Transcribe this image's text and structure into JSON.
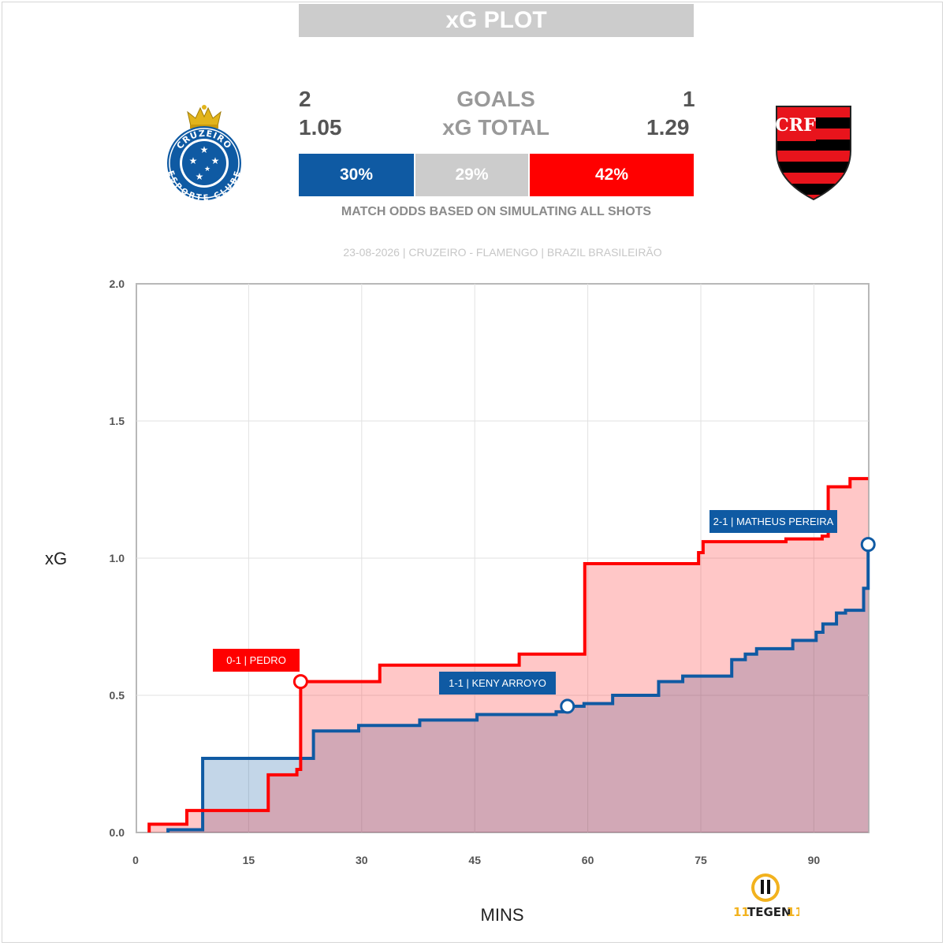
{
  "header": {
    "title": "xG PLOT"
  },
  "teams": {
    "home": {
      "name": "CRUZEIRO",
      "goals": "2",
      "xg": "1.05",
      "color": "#0f5aa3",
      "crest_text_top": "CRUZEIRO",
      "crest_text_bottom": "ESPORTE CLUBE"
    },
    "away": {
      "name": "FLAMENGO",
      "goals": "1",
      "xg": "1.29",
      "color": "#ff0000",
      "crest_monogram": "CRF"
    }
  },
  "labels": {
    "goals": "GOALS",
    "xg_total": "xG TOTAL"
  },
  "odds": {
    "home": "30%",
    "draw": "29%",
    "away": "42%",
    "home_pct": 30,
    "draw_pct": 29,
    "away_pct": 42,
    "caption": "MATCH ODDS BASED ON SIMULATING ALL SHOTS"
  },
  "match_info": "23-08-2026 | CRUZEIRO - FLAMENGO | BRAZIL BRASILEIRÃO",
  "brand": {
    "text": "TEGEN"
  },
  "chart_data": {
    "type": "line",
    "title": "",
    "xlabel": "MINS",
    "ylabel": "xG",
    "xlim": [
      0,
      97
    ],
    "ylim": [
      0,
      2.0
    ],
    "xticks": [
      0,
      15,
      30,
      45,
      60,
      75,
      90
    ],
    "yticks": [
      "0.0",
      "0.5",
      "1.0",
      "1.5",
      "2.0"
    ],
    "grid": true,
    "series": [
      {
        "name": "CRUZEIRO",
        "color": "#0f5aa3",
        "step": true,
        "points": [
          [
            4.3,
            0
          ],
          [
            4.3,
            0.01
          ],
          [
            8.9,
            0.01
          ],
          [
            8.9,
            0.27
          ],
          [
            23.6,
            0.27
          ],
          [
            23.6,
            0.37
          ],
          [
            29.6,
            0.37
          ],
          [
            29.6,
            0.39
          ],
          [
            37.7,
            0.39
          ],
          [
            37.7,
            0.41
          ],
          [
            45.3,
            0.41
          ],
          [
            45.3,
            0.43
          ],
          [
            55.8,
            0.43
          ],
          [
            55.8,
            0.44
          ],
          [
            57.3,
            0.44
          ],
          [
            57.3,
            0.46
          ],
          [
            59.5,
            0.46
          ],
          [
            59.5,
            0.47
          ],
          [
            63.3,
            0.47
          ],
          [
            63.3,
            0.5
          ],
          [
            69.4,
            0.5
          ],
          [
            69.4,
            0.55
          ],
          [
            72.6,
            0.55
          ],
          [
            72.6,
            0.57
          ],
          [
            79.1,
            0.57
          ],
          [
            79.1,
            0.63
          ],
          [
            80.9,
            0.63
          ],
          [
            80.9,
            0.65
          ],
          [
            82.4,
            0.65
          ],
          [
            82.4,
            0.67
          ],
          [
            87.2,
            0.67
          ],
          [
            87.2,
            0.7
          ],
          [
            90.3,
            0.7
          ],
          [
            90.3,
            0.73
          ],
          [
            91.2,
            0.73
          ],
          [
            91.2,
            0.76
          ],
          [
            93.0,
            0.76
          ],
          [
            93.0,
            0.8
          ],
          [
            94.2,
            0.8
          ],
          [
            94.2,
            0.81
          ],
          [
            96.6,
            0.81
          ],
          [
            96.6,
            0.89
          ],
          [
            97.2,
            0.89
          ],
          [
            97.2,
            1.05
          ]
        ]
      },
      {
        "name": "FLAMENGO",
        "color": "#ff0000",
        "step": true,
        "points": [
          [
            1.8,
            0
          ],
          [
            1.8,
            0.03
          ],
          [
            6.8,
            0.03
          ],
          [
            6.8,
            0.08
          ],
          [
            17.6,
            0.08
          ],
          [
            17.6,
            0.21
          ],
          [
            21.4,
            0.21
          ],
          [
            21.4,
            0.23
          ],
          [
            21.9,
            0.23
          ],
          [
            21.9,
            0.55
          ],
          [
            32.4,
            0.55
          ],
          [
            32.4,
            0.61
          ],
          [
            50.9,
            0.61
          ],
          [
            50.9,
            0.65
          ],
          [
            59.6,
            0.65
          ],
          [
            59.6,
            0.98
          ],
          [
            74.7,
            0.98
          ],
          [
            74.7,
            1.02
          ],
          [
            75.3,
            1.02
          ],
          [
            75.3,
            1.06
          ],
          [
            86.3,
            1.06
          ],
          [
            86.3,
            1.07
          ],
          [
            91.1,
            1.07
          ],
          [
            91.1,
            1.08
          ],
          [
            91.9,
            1.08
          ],
          [
            91.9,
            1.26
          ],
          [
            94.8,
            1.26
          ],
          [
            94.8,
            1.29
          ],
          [
            97.2,
            1.29
          ]
        ]
      }
    ],
    "annotations": [
      {
        "text": "0-1 | PEDRO",
        "team": "away",
        "x": 21.9,
        "y": 0.55
      },
      {
        "text": "1-1 | KENY ARROYO",
        "team": "home",
        "x": 57.3,
        "y": 0.46
      },
      {
        "text": "2-1 | MATHEUS PEREIRA",
        "team": "home",
        "x": 97.2,
        "y": 1.05
      }
    ]
  }
}
